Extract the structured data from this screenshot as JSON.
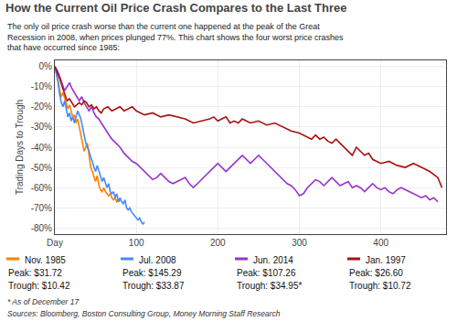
{
  "chart_data": {
    "type": "line",
    "title": "How the Current Oil Price Crash Compares to the Last Three",
    "subtitle": "The only oil price crash worse than the current one happened at the peak of the Great\nRecession in 2008, when prices plunged 77%. This chart shows the four worst price crashes\nthat have occurred since 1985:",
    "ylabel": "Trading Days to Trough",
    "xlim": [
      0,
      480
    ],
    "xticks": [
      {
        "value": 0,
        "label": "Day"
      },
      100,
      200,
      300,
      400
    ],
    "ylim": [
      -83,
      3
    ],
    "yticks": [
      {
        "value": 0,
        "label": "0%"
      },
      {
        "value": -10,
        "label": "-10%"
      },
      {
        "value": -20,
        "label": "-20%"
      },
      {
        "value": -30,
        "label": "-30%"
      },
      {
        "value": -40,
        "label": "-40%"
      },
      {
        "value": -50,
        "label": "-50%"
      },
      {
        "value": -60,
        "label": "-60%"
      },
      {
        "value": -70,
        "label": "-70%"
      },
      {
        "value": -80,
        "label": "-80%"
      }
    ],
    "grid": true,
    "legend": "bottom",
    "annotations": [
      "* As of December 17",
      "Sources: Bloomberg, Boston Consulting Group, Money Morning Staff Research"
    ],
    "series": [
      {
        "name": "Nov. 1985",
        "color": "#ff8000",
        "annotations": [
          "Peak: $31.72",
          "Trough: $10.42"
        ],
        "x": [
          0,
          2,
          4,
          6,
          8,
          10,
          12,
          14,
          16,
          18,
          20,
          22,
          24,
          26,
          28,
          30,
          32,
          34,
          36,
          38,
          40,
          42,
          44,
          46,
          48,
          50,
          52,
          54,
          56,
          58,
          60,
          62,
          64,
          66,
          68,
          70,
          72,
          74,
          76,
          78,
          80
        ],
        "values": [
          0,
          -3,
          -7,
          -12,
          -15,
          -13,
          -16,
          -18,
          -21,
          -19,
          -22,
          -25,
          -24,
          -28,
          -26,
          -30,
          -35,
          -38,
          -42,
          -40,
          -38,
          -44,
          -50,
          -52,
          -55,
          -57,
          -54,
          -59,
          -61,
          -62,
          -60,
          -62,
          -63,
          -64,
          -63,
          -65,
          -66,
          -65,
          -67,
          -66,
          -67
        ]
      },
      {
        "name": "Jul. 2008",
        "color": "#4488ff",
        "annotations": [
          "Peak: $145.29",
          "Trough: $33.87"
        ],
        "x": [
          0,
          2,
          4,
          6,
          8,
          10,
          12,
          14,
          16,
          18,
          20,
          22,
          24,
          26,
          28,
          30,
          32,
          34,
          36,
          38,
          40,
          42,
          44,
          46,
          48,
          50,
          52,
          54,
          56,
          58,
          60,
          62,
          64,
          66,
          68,
          70,
          72,
          74,
          76,
          78,
          80,
          82,
          84,
          86,
          88,
          90,
          92,
          94,
          96,
          98,
          100,
          102,
          104,
          106,
          108,
          110
        ],
        "values": [
          0,
          -4,
          -8,
          -14,
          -18,
          -20,
          -17,
          -21,
          -25,
          -23,
          -27,
          -25,
          -28,
          -25,
          -22,
          -24,
          -26,
          -30,
          -35,
          -38,
          -40,
          -42,
          -45,
          -47,
          -50,
          -52,
          -49,
          -52,
          -55,
          -57,
          -55,
          -58,
          -60,
          -58,
          -62,
          -63,
          -62,
          -65,
          -63,
          -67,
          -65,
          -67,
          -68,
          -66,
          -70,
          -71,
          -70,
          -72,
          -73,
          -74,
          -75,
          -76,
          -75,
          -77,
          -78,
          -77
        ]
      },
      {
        "name": "Jun. 2014",
        "color": "#9933cc",
        "annotations": [
          "Peak: $107.26",
          "Trough: $34.95*"
        ],
        "x": [
          0,
          3,
          6,
          9,
          12,
          15,
          18,
          21,
          24,
          27,
          30,
          33,
          36,
          39,
          42,
          45,
          48,
          51,
          54,
          57,
          60,
          65,
          70,
          75,
          80,
          85,
          90,
          95,
          100,
          105,
          110,
          115,
          120,
          125,
          130,
          135,
          140,
          145,
          150,
          155,
          160,
          165,
          170,
          175,
          180,
          185,
          190,
          195,
          200,
          205,
          210,
          215,
          220,
          225,
          230,
          235,
          240,
          245,
          250,
          255,
          260,
          265,
          270,
          275,
          280,
          285,
          290,
          295,
          300,
          305,
          310,
          315,
          320,
          325,
          330,
          335,
          340,
          345,
          350,
          355,
          360,
          365,
          370,
          375,
          380,
          385,
          390,
          395,
          400,
          405,
          410,
          415,
          420,
          425,
          430,
          435,
          440,
          445,
          450,
          455,
          460,
          465,
          470
        ],
        "values": [
          0,
          -2,
          -5,
          -9,
          -12,
          -10,
          -8,
          -11,
          -13,
          -15,
          -17,
          -15,
          -18,
          -20,
          -22,
          -20,
          -23,
          -25,
          -26,
          -28,
          -30,
          -33,
          -36,
          -38,
          -40,
          -43,
          -45,
          -47,
          -48,
          -50,
          -52,
          -54,
          -56,
          -55,
          -53,
          -55,
          -57,
          -58,
          -57,
          -56,
          -55,
          -58,
          -60,
          -58,
          -56,
          -54,
          -52,
          -50,
          -48,
          -50,
          -52,
          -50,
          -48,
          -46,
          -44,
          -46,
          -48,
          -46,
          -44,
          -46,
          -48,
          -50,
          -52,
          -54,
          -56,
          -58,
          -59,
          -61,
          -64,
          -63,
          -60,
          -58,
          -56,
          -57,
          -59,
          -57,
          -55,
          -57,
          -59,
          -58,
          -57,
          -60,
          -59,
          -60,
          -62,
          -60,
          -58,
          -60,
          -61,
          -60,
          -62,
          -63,
          -61,
          -60,
          -61,
          -62,
          -63,
          -64,
          -65,
          -64,
          -66,
          -65,
          -67
        ]
      },
      {
        "name": "Jan. 1997",
        "color": "#aa1111",
        "annotations": [
          "Peak: $26.60",
          "Trough: $10.72"
        ],
        "x": [
          0,
          3,
          6,
          9,
          12,
          15,
          18,
          21,
          24,
          27,
          30,
          33,
          36,
          39,
          42,
          45,
          48,
          51,
          54,
          57,
          60,
          65,
          70,
          75,
          80,
          85,
          90,
          95,
          100,
          110,
          120,
          130,
          140,
          150,
          160,
          170,
          180,
          190,
          195,
          200,
          205,
          210,
          215,
          220,
          225,
          230,
          235,
          240,
          250,
          260,
          270,
          280,
          290,
          300,
          310,
          315,
          320,
          325,
          330,
          335,
          340,
          345,
          350,
          355,
          360,
          365,
          370,
          375,
          380,
          385,
          390,
          395,
          400,
          410,
          420,
          430,
          440,
          450,
          460,
          470,
          475
        ],
        "values": [
          0,
          -3,
          -6,
          -10,
          -14,
          -17,
          -16,
          -18,
          -20,
          -19,
          -18,
          -19,
          -17,
          -18,
          -20,
          -19,
          -21,
          -20,
          -22,
          -23,
          -21,
          -20,
          -22,
          -21,
          -20,
          -22,
          -21,
          -20,
          -22,
          -24,
          -23,
          -25,
          -24,
          -25,
          -26,
          -28,
          -27,
          -26,
          -25,
          -27,
          -26,
          -25,
          -28,
          -27,
          -28,
          -26,
          -27,
          -28,
          -27,
          -29,
          -28,
          -30,
          -32,
          -33,
          -35,
          -36,
          -34,
          -36,
          -35,
          -37,
          -38,
          -36,
          -38,
          -40,
          -42,
          -44,
          -40,
          -42,
          -44,
          -43,
          -46,
          -47,
          -48,
          -47,
          -49,
          -50,
          -48,
          -50,
          -52,
          -55,
          -60
        ]
      }
    ]
  }
}
